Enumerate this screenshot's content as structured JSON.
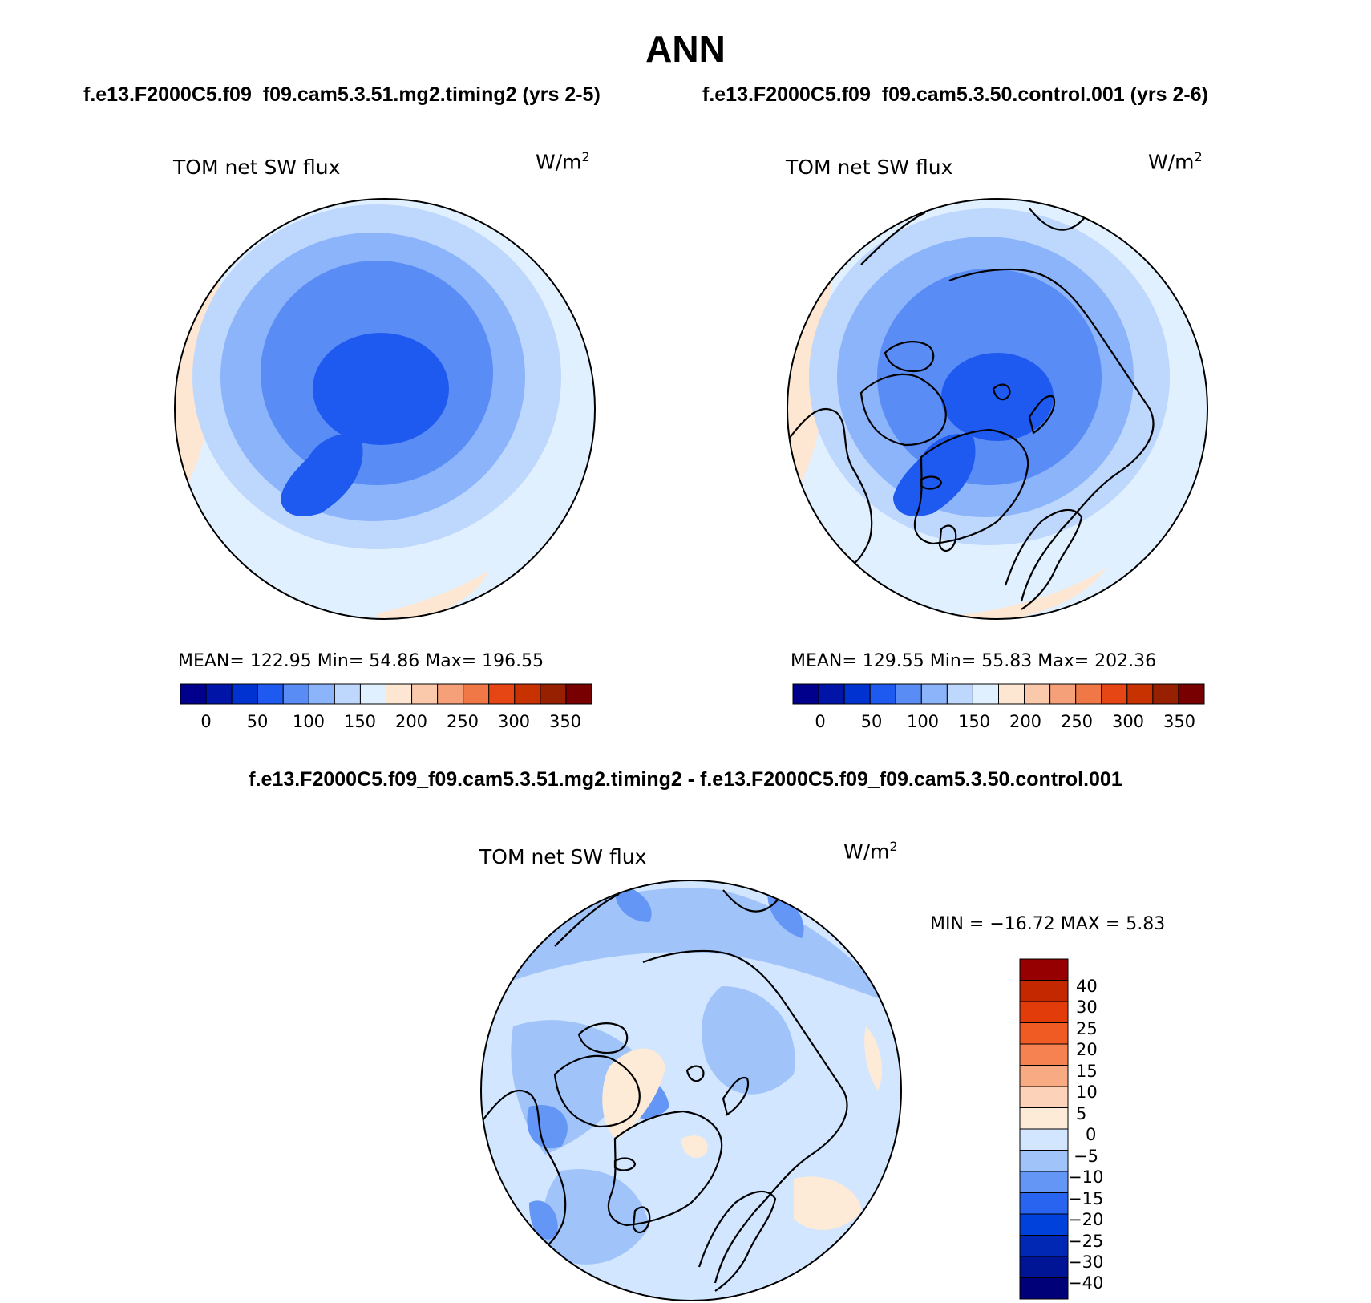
{
  "header": {
    "title": "ANN",
    "case_left": "f.e13.F2000C5.f09_f09.cam5.3.51.mg2.timing2 (yrs 2-5)",
    "case_right": "f.e13.F2000C5.f09_f09.cam5.3.50.control.001 (yrs 2-6)",
    "diff_title": "f.e13.F2000C5.f09_f09.cam5.3.51.mg2.timing2 - f.e13.F2000C5.f09_f09.cam5.3.50.control.001"
  },
  "panels": [
    {
      "variable": "TOM net SW flux",
      "units_base": "W/m",
      "units_exp": "2",
      "stats": "MEAN= 122.95   Min=   54.86   Max= 196.55"
    },
    {
      "variable": "TOM net SW flux",
      "units_base": "W/m",
      "units_exp": "2",
      "stats": "MEAN= 129.55   Min=   55.83   Max= 202.36"
    }
  ],
  "diff_panel": {
    "variable": "TOM net SW flux",
    "units_base": "W/m",
    "units_exp": "2",
    "stats": "MIN = −16.72 MAX =    5.83"
  },
  "colorbar_horizontal": {
    "colors": [
      "#00008c",
      "#0015a8",
      "#0032d2",
      "#1e5af0",
      "#5a8cf5",
      "#8cb4fa",
      "#bed7fc",
      "#e1f0ff",
      "#fde6d2",
      "#fac8aa",
      "#f5a078",
      "#f07846",
      "#e64614",
      "#c83200",
      "#962000",
      "#780000"
    ],
    "labels": [
      "0",
      "50",
      "100",
      "150",
      "200",
      "250",
      "300",
      "350"
    ]
  },
  "colorbar_vertical": {
    "colors_bottom_to_top": [
      "#000078",
      "#001496",
      "#0028b4",
      "#0041dc",
      "#2864f0",
      "#6496f5",
      "#a0c3fa",
      "#d2e6ff",
      "#fdebd7",
      "#fcd2b9",
      "#f8aa82",
      "#f58250",
      "#f05a23",
      "#e13c0a",
      "#c32800",
      "#960000"
    ],
    "labels_top_to_bottom": [
      "40",
      "30",
      "25",
      "20",
      "15",
      "10",
      "5",
      "0",
      "−5",
      "−10",
      "−15",
      "−20",
      "−25",
      "−30",
      "−40"
    ]
  }
}
